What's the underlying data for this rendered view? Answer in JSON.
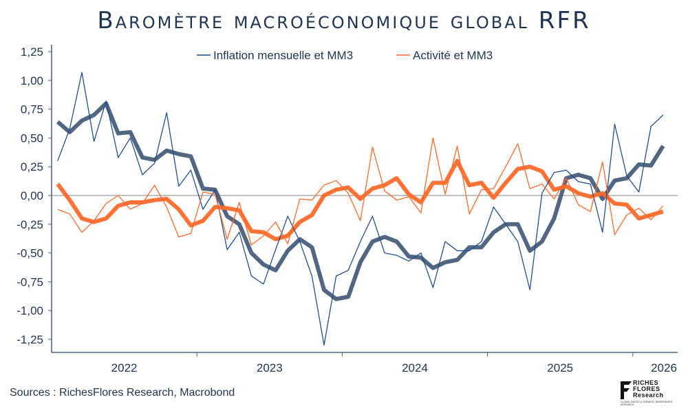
{
  "title": "Baromètre macroéconomique global RFR",
  "source": "Sources : RichesFlores Research, Macrobond",
  "logo": {
    "name_lines": [
      "RICHES",
      "FLORES",
      "Research"
    ],
    "tagline": "GLOBAL MACRO & THEMATIC INDEPENDENT RESEARCH"
  },
  "colors": {
    "inflation_monthly": "#1f4e8c",
    "inflation_mm3": "#4a5e7a",
    "activity": "#ff6a2b",
    "axis": "#4a5e7a",
    "zero": "#999999"
  },
  "chart_data": {
    "type": "line",
    "title": "Baromètre macroéconomique global RFR",
    "xlabel": "",
    "ylabel": "",
    "x_start": "2022-01",
    "x_step": "month",
    "n_points": 51,
    "x_tick_labels": [
      "2022",
      "2023",
      "2024",
      "2025",
      "2026"
    ],
    "y_tick_labels": [
      "1,25",
      "1,00",
      "0,75",
      "0,50",
      "0,25",
      "0,00",
      "-0,25",
      "-0,50",
      "-0,75",
      "-1,00",
      "-1,25"
    ],
    "ylim": [
      -1.25,
      1.25
    ],
    "legend": [
      "Inflation mensuelle et MM3",
      "Activité et MM3"
    ],
    "legend_position": "top-center",
    "series": [
      {
        "name": "Inflation mensuelle",
        "style": "thin",
        "color": "#1f4e8c",
        "values": [
          0.3,
          0.58,
          1.07,
          0.47,
          0.82,
          0.33,
          0.5,
          0.18,
          0.28,
          0.72,
          0.08,
          0.22,
          -0.12,
          0.05,
          -0.47,
          -0.32,
          -0.7,
          -0.77,
          -0.47,
          -0.18,
          -0.4,
          -0.7,
          -1.3,
          -0.7,
          -0.65,
          -0.4,
          -0.18,
          -0.5,
          -0.52,
          -0.57,
          -0.5,
          -0.8,
          -0.4,
          -0.48,
          -0.48,
          -0.4,
          -0.1,
          -0.25,
          -0.4,
          -0.82,
          0.02,
          0.2,
          0.22,
          0.12,
          0.1,
          -0.32,
          0.62,
          0.17,
          0.03,
          0.6,
          0.7
        ]
      },
      {
        "name": "Inflation MM3",
        "style": "thick",
        "color": "#4a5e7a",
        "values": [
          0.64,
          0.55,
          0.65,
          0.7,
          0.8,
          0.54,
          0.55,
          0.33,
          0.31,
          0.39,
          0.36,
          0.34,
          0.06,
          0.05,
          -0.18,
          -0.25,
          -0.5,
          -0.6,
          -0.65,
          -0.48,
          -0.38,
          -0.45,
          -0.82,
          -0.9,
          -0.88,
          -0.58,
          -0.4,
          -0.36,
          -0.4,
          -0.53,
          -0.54,
          -0.63,
          -0.58,
          -0.56,
          -0.45,
          -0.45,
          -0.32,
          -0.25,
          -0.25,
          -0.48,
          -0.4,
          -0.2,
          0.15,
          0.18,
          0.15,
          -0.03,
          0.13,
          0.15,
          0.27,
          0.26,
          0.43
        ]
      },
      {
        "name": "Activité",
        "style": "thin",
        "color": "#ff6a2b",
        "values": [
          -0.12,
          -0.16,
          -0.32,
          -0.22,
          -0.07,
          0.0,
          -0.12,
          -0.07,
          0.09,
          -0.1,
          -0.36,
          -0.33,
          0.03,
          0.01,
          -0.38,
          -0.06,
          -0.43,
          -0.35,
          -0.23,
          -0.42,
          -0.03,
          -0.04,
          0.09,
          0.13,
          0.02,
          -0.22,
          0.42,
          0.04,
          -0.04,
          -0.01,
          -0.15,
          0.5,
          0.01,
          0.43,
          -0.16,
          0.05,
          0.06,
          0.25,
          0.45,
          0.06,
          0.1,
          -0.03,
          0.15,
          -0.08,
          -0.14,
          0.29,
          -0.34,
          -0.17,
          -0.11,
          -0.21,
          -0.09
        ]
      },
      {
        "name": "Activité MM3",
        "style": "thick",
        "color": "#ff6a2b",
        "values": [
          0.1,
          -0.04,
          -0.2,
          -0.23,
          -0.2,
          -0.09,
          -0.06,
          -0.06,
          -0.04,
          -0.03,
          -0.12,
          -0.26,
          -0.22,
          -0.1,
          -0.11,
          -0.13,
          -0.31,
          -0.32,
          -0.38,
          -0.35,
          -0.23,
          -0.17,
          0.0,
          0.05,
          0.07,
          -0.03,
          0.06,
          0.09,
          0.15,
          0.01,
          -0.06,
          0.11,
          0.11,
          0.3,
          0.09,
          0.11,
          -0.02,
          0.11,
          0.23,
          0.25,
          0.21,
          0.05,
          0.08,
          0.02,
          -0.01,
          0.02,
          -0.07,
          -0.08,
          -0.2,
          -0.17,
          -0.14
        ]
      }
    ]
  }
}
